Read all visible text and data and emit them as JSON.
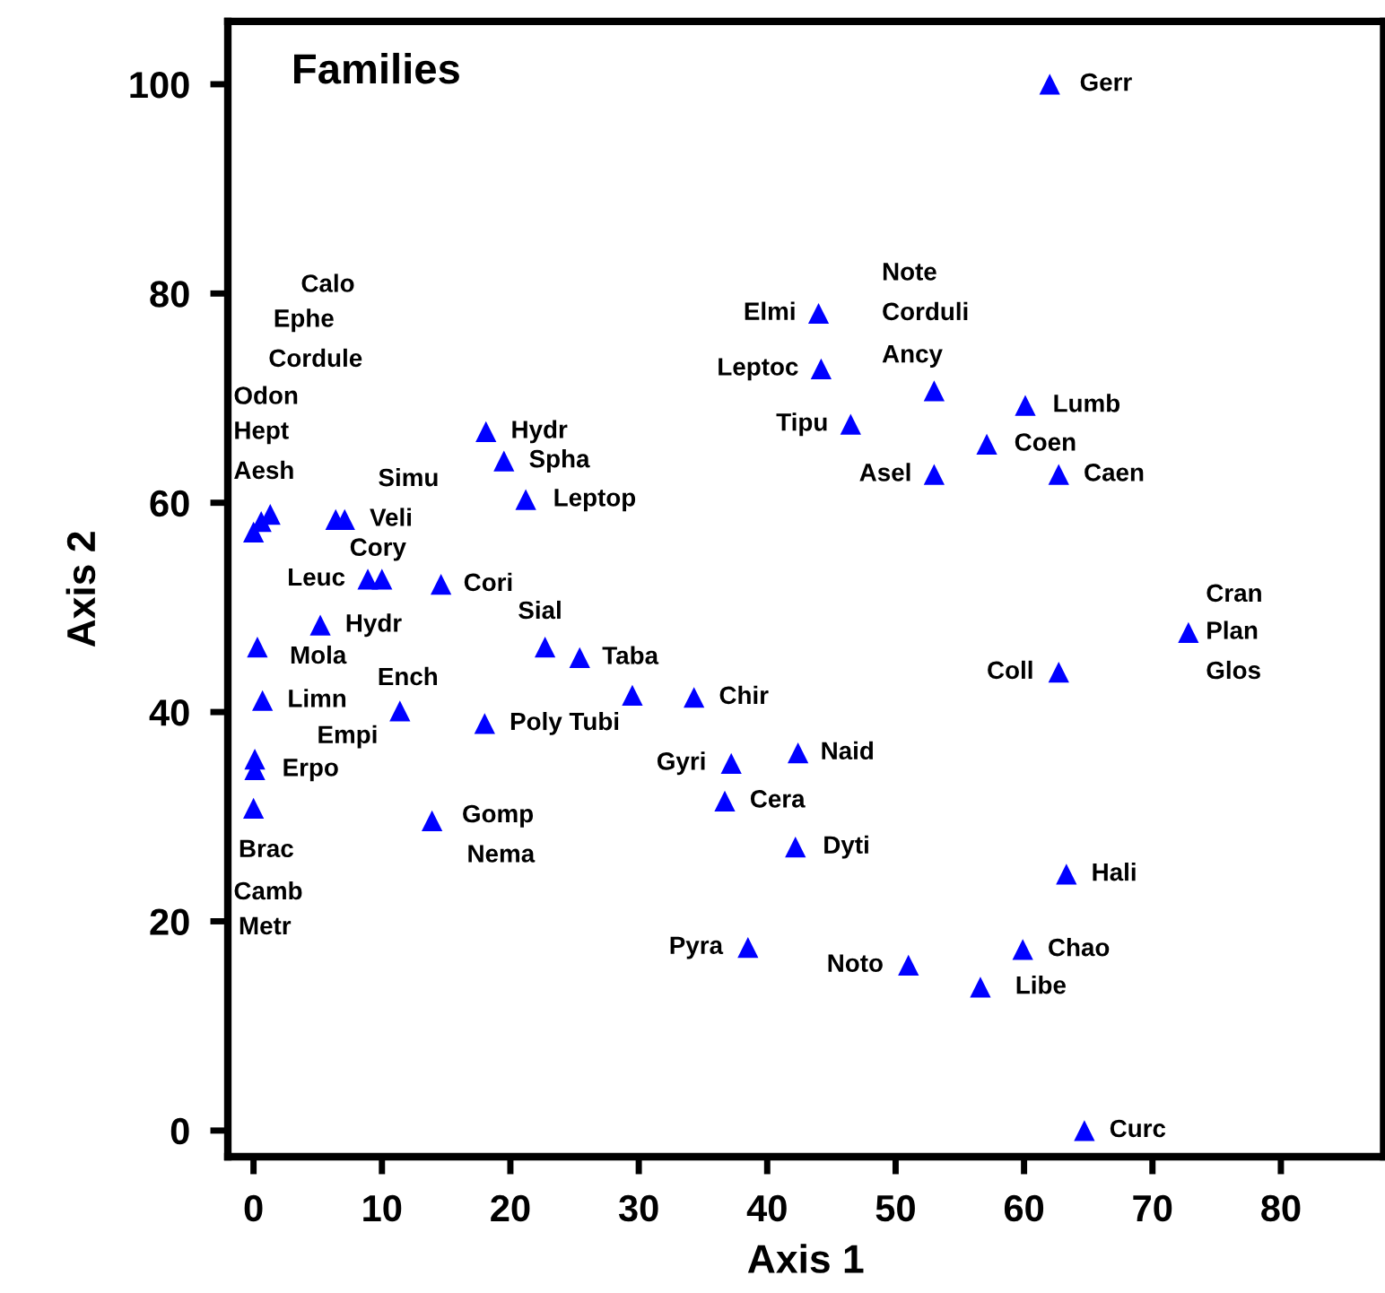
{
  "chart_data": {
    "type": "scatter",
    "title": "Families",
    "xlabel": "Axis 1",
    "ylabel": "Axis 2",
    "xlim": [
      -2,
      88
    ],
    "ylim": [
      -2.5,
      106
    ],
    "xticks": [
      0,
      10,
      20,
      30,
      40,
      50,
      60,
      70,
      80
    ],
    "yticks": [
      0,
      20,
      40,
      60,
      80,
      100
    ],
    "grid": false,
    "legend": false,
    "marker": "triangle",
    "series": [
      {
        "color": "#0000ff",
        "x": [
          62.0,
          44.0,
          44.2,
          46.5,
          53.0,
          60.1,
          57.1,
          53.0,
          62.7,
          72.8,
          62.7,
          34.3,
          25.4,
          22.7,
          29.5,
          18.0,
          42.4,
          37.2,
          36.7,
          42.2,
          63.3,
          59.9,
          38.5,
          51.0,
          56.6,
          64.7,
          18.1,
          19.5,
          21.2,
          1.3,
          0.6,
          0,
          6.4,
          7.1,
          8.9,
          10.0,
          14.6,
          5.2,
          0.3,
          0.7,
          11.4,
          0.1,
          0.1,
          0,
          13.9
        ],
        "values": [
          100,
          78.1,
          72.8,
          67.5,
          70.7,
          69.3,
          65.6,
          62.7,
          62.7,
          47.6,
          43.8,
          41.4,
          45.2,
          46.2,
          41.6,
          38.9,
          36.1,
          35.1,
          31.5,
          27.1,
          24.5,
          17.3,
          17.5,
          15.8,
          13.7,
          0,
          66.8,
          64.0,
          60.3,
          58.9,
          58.2,
          57.2,
          58.4,
          58.4,
          52.7,
          52.7,
          52.2,
          48.3,
          46.2,
          41.1,
          40.1,
          35.5,
          34.5,
          30.8,
          29.6
        ]
      }
    ],
    "annotations": [
      {
        "text": "Gerr",
        "x": 62.0,
        "y": 100
      },
      {
        "text": "Elmi",
        "x": 44.0,
        "y": 78.1
      },
      {
        "text": "Leptoc",
        "x": 44.2,
        "y": 72.8
      },
      {
        "text": "Tipu",
        "x": 46.5,
        "y": 67.5
      },
      "Note",
      {
        "text": "Corduli",
        "x": 53.0,
        "y": 70.7
      },
      {
        "text": "Ancy",
        "x": 53.0,
        "y": 70.7
      },
      {
        "text": "Lumb",
        "x": 60.1,
        "y": 69.3
      },
      {
        "text": "Coen",
        "x": 57.1,
        "y": 65.6
      },
      {
        "text": "Asel",
        "x": 53.0,
        "y": 62.7
      },
      {
        "text": "Caen",
        "x": 62.7,
        "y": 62.7
      },
      {
        "text": "Cran",
        "x": 72.8,
        "y": 47.6
      },
      {
        "text": "Plan",
        "x": 72.8,
        "y": 47.6
      },
      {
        "text": "Glos",
        "x": 72.8,
        "y": 47.6
      },
      {
        "text": "Coll",
        "x": 62.7,
        "y": 43.8
      },
      {
        "text": "Chir",
        "x": 34.3,
        "y": 41.4
      },
      {
        "text": "Taba",
        "x": 25.4,
        "y": 45.2
      },
      {
        "text": "Sial",
        "x": 22.7,
        "y": 46.2
      },
      {
        "text": "Poly Tubi",
        "x": 18.0,
        "y": 38.9
      },
      {
        "text": "Naid",
        "x": 42.4,
        "y": 36.1
      },
      {
        "text": "Gyri",
        "x": 37.2,
        "y": 35.1
      },
      {
        "text": "Cera",
        "x": 36.7,
        "y": 31.5
      },
      {
        "text": "Dyti",
        "x": 42.2,
        "y": 27.1
      },
      {
        "text": "Hali",
        "x": 63.3,
        "y": 24.5
      },
      {
        "text": "Chao",
        "x": 59.9,
        "y": 17.3
      },
      {
        "text": "Pyra",
        "x": 38.5,
        "y": 17.5
      },
      {
        "text": "Noto",
        "x": 51.0,
        "y": 15.8
      },
      {
        "text": "Libe",
        "x": 56.6,
        "y": 13.7
      },
      {
        "text": "Curc",
        "x": 64.7,
        "y": 0
      },
      {
        "text": "Hydr",
        "x": 18.1,
        "y": 66.8
      },
      {
        "text": "Spha",
        "x": 19.5,
        "y": 64.0
      },
      {
        "text": "Leptop",
        "x": 21.2,
        "y": 60.3
      },
      "Calo",
      "Ephe",
      "Cordule",
      "Odon",
      "Hept",
      {
        "text": "Aesh",
        "x": 0,
        "y": 57.2
      },
      {
        "text": "Simu",
        "x": 6.4,
        "y": 58.4
      },
      {
        "text": "Veli",
        "x": 7.1,
        "y": 58.4
      },
      {
        "text": "Cory",
        "x": 10.0,
        "y": 52.7
      },
      {
        "text": "Leuc",
        "x": 8.9,
        "y": 52.7
      },
      {
        "text": "Cori",
        "x": 14.6,
        "y": 52.2
      },
      {
        "text": "Hydr",
        "x": 5.2,
        "y": 48.3
      },
      {
        "text": "Mola",
        "x": 0.3,
        "y": 46.2
      },
      {
        "text": "Limn",
        "x": 0.7,
        "y": 41.1
      },
      {
        "text": "Ench",
        "x": 11.4,
        "y": 40.1
      },
      {
        "text": "Empi",
        "x": 0.1,
        "y": 35.5
      },
      {
        "text": "Erpo",
        "x": 0.1,
        "y": 34.5
      },
      {
        "text": "Brac",
        "x": 0,
        "y": 30.8
      },
      {
        "text": "Camb",
        "x": 0,
        "y": 30.8
      },
      "Metr",
      {
        "text": "Gomp",
        "x": 13.9,
        "y": 29.6
      },
      {
        "text": "Nema",
        "x": 13.9,
        "y": 29.6
      }
    ]
  }
}
